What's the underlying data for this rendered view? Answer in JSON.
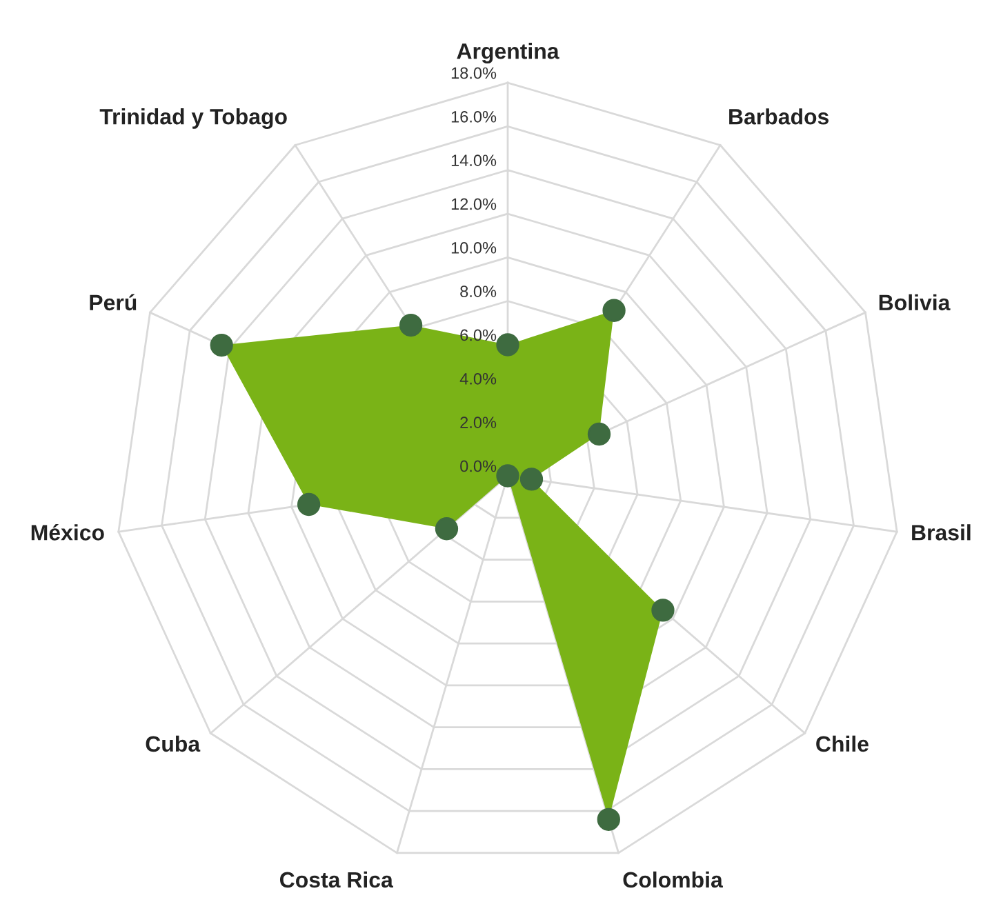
{
  "chart_data": {
    "type": "radar",
    "categories": [
      "Argentina",
      "Barbados",
      "Bolivia",
      "Brasil",
      "Chile",
      "Colombia",
      "Costa Rica",
      "Cuba",
      "México",
      "Perú",
      "Trinidad y Tobago"
    ],
    "series": [
      {
        "color": "#7ab317",
        "values": [
          6.0,
          9.0,
          4.6,
          1.1,
          9.4,
          16.4,
          0.0,
          3.7,
          9.2,
          14.4,
          8.2
        ]
      }
    ],
    "ylim": [
      0,
      18
    ],
    "yticks": [
      {
        "value": 0,
        "label": "0.0%"
      },
      {
        "value": 2,
        "label": "2.0%"
      },
      {
        "value": 4,
        "label": "4.0%"
      },
      {
        "value": 6,
        "label": "6.0%"
      },
      {
        "value": 8,
        "label": "8.0%"
      },
      {
        "value": 10,
        "label": "10.0%"
      },
      {
        "value": 12,
        "label": "12.0%"
      },
      {
        "value": 14,
        "label": "14.0%"
      },
      {
        "value": 16,
        "label": "16.0%"
      },
      {
        "value": 18,
        "label": "18.0%"
      }
    ],
    "marker": "circle",
    "grid": true
  }
}
